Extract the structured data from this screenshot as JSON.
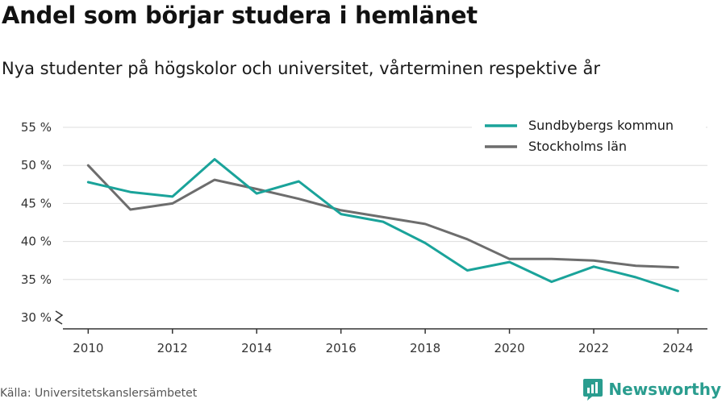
{
  "header": {
    "title": "Andel som börjar studera i hemlänet",
    "subtitle": "Nya studenter på högskolor och universitet, vårterminen respektive år"
  },
  "footer": {
    "source": "Källa: Universitetskanslersämbetet",
    "brand": "Newsworthy"
  },
  "colors": {
    "sundbyberg": "#1aa39a",
    "stockholm": "#6d6d6d",
    "grid": "#dddddd",
    "brand": "#2a9d8f"
  },
  "chart_data": {
    "type": "line",
    "x": [
      2010,
      2011,
      2012,
      2013,
      2014,
      2015,
      2016,
      2017,
      2018,
      2019,
      2020,
      2021,
      2022,
      2023,
      2024
    ],
    "series": [
      {
        "name": "Sundbybergs kommun",
        "color": "#1aa39a",
        "values": [
          47.8,
          46.5,
          45.9,
          50.8,
          46.3,
          47.9,
          43.6,
          42.6,
          39.8,
          36.2,
          37.3,
          34.7,
          36.7,
          35.3,
          33.5
        ]
      },
      {
        "name": "Stockholms län",
        "color": "#6d6d6d",
        "values": [
          50.0,
          44.2,
          45.0,
          48.1,
          46.9,
          45.6,
          44.1,
          43.2,
          42.3,
          40.3,
          37.7,
          37.7,
          37.5,
          36.8,
          36.6
        ]
      }
    ],
    "y_ticks": [
      30,
      35,
      40,
      45,
      50,
      55
    ],
    "y_tick_labels": [
      "30 %",
      "35 %",
      "40 %",
      "45 %",
      "50 %",
      "55 %"
    ],
    "x_ticks": [
      2010,
      2012,
      2014,
      2016,
      2018,
      2020,
      2022,
      2024
    ],
    "x_tick_labels": [
      "2010",
      "2012",
      "2014",
      "2016",
      "2018",
      "2020",
      "2022",
      "2024"
    ],
    "ylim": [
      30,
      55
    ],
    "xlim": [
      2009.4,
      2024.7
    ],
    "axis_break": "y-axis below 30 %",
    "grid": "horizontal",
    "legend_position": "top-right"
  }
}
